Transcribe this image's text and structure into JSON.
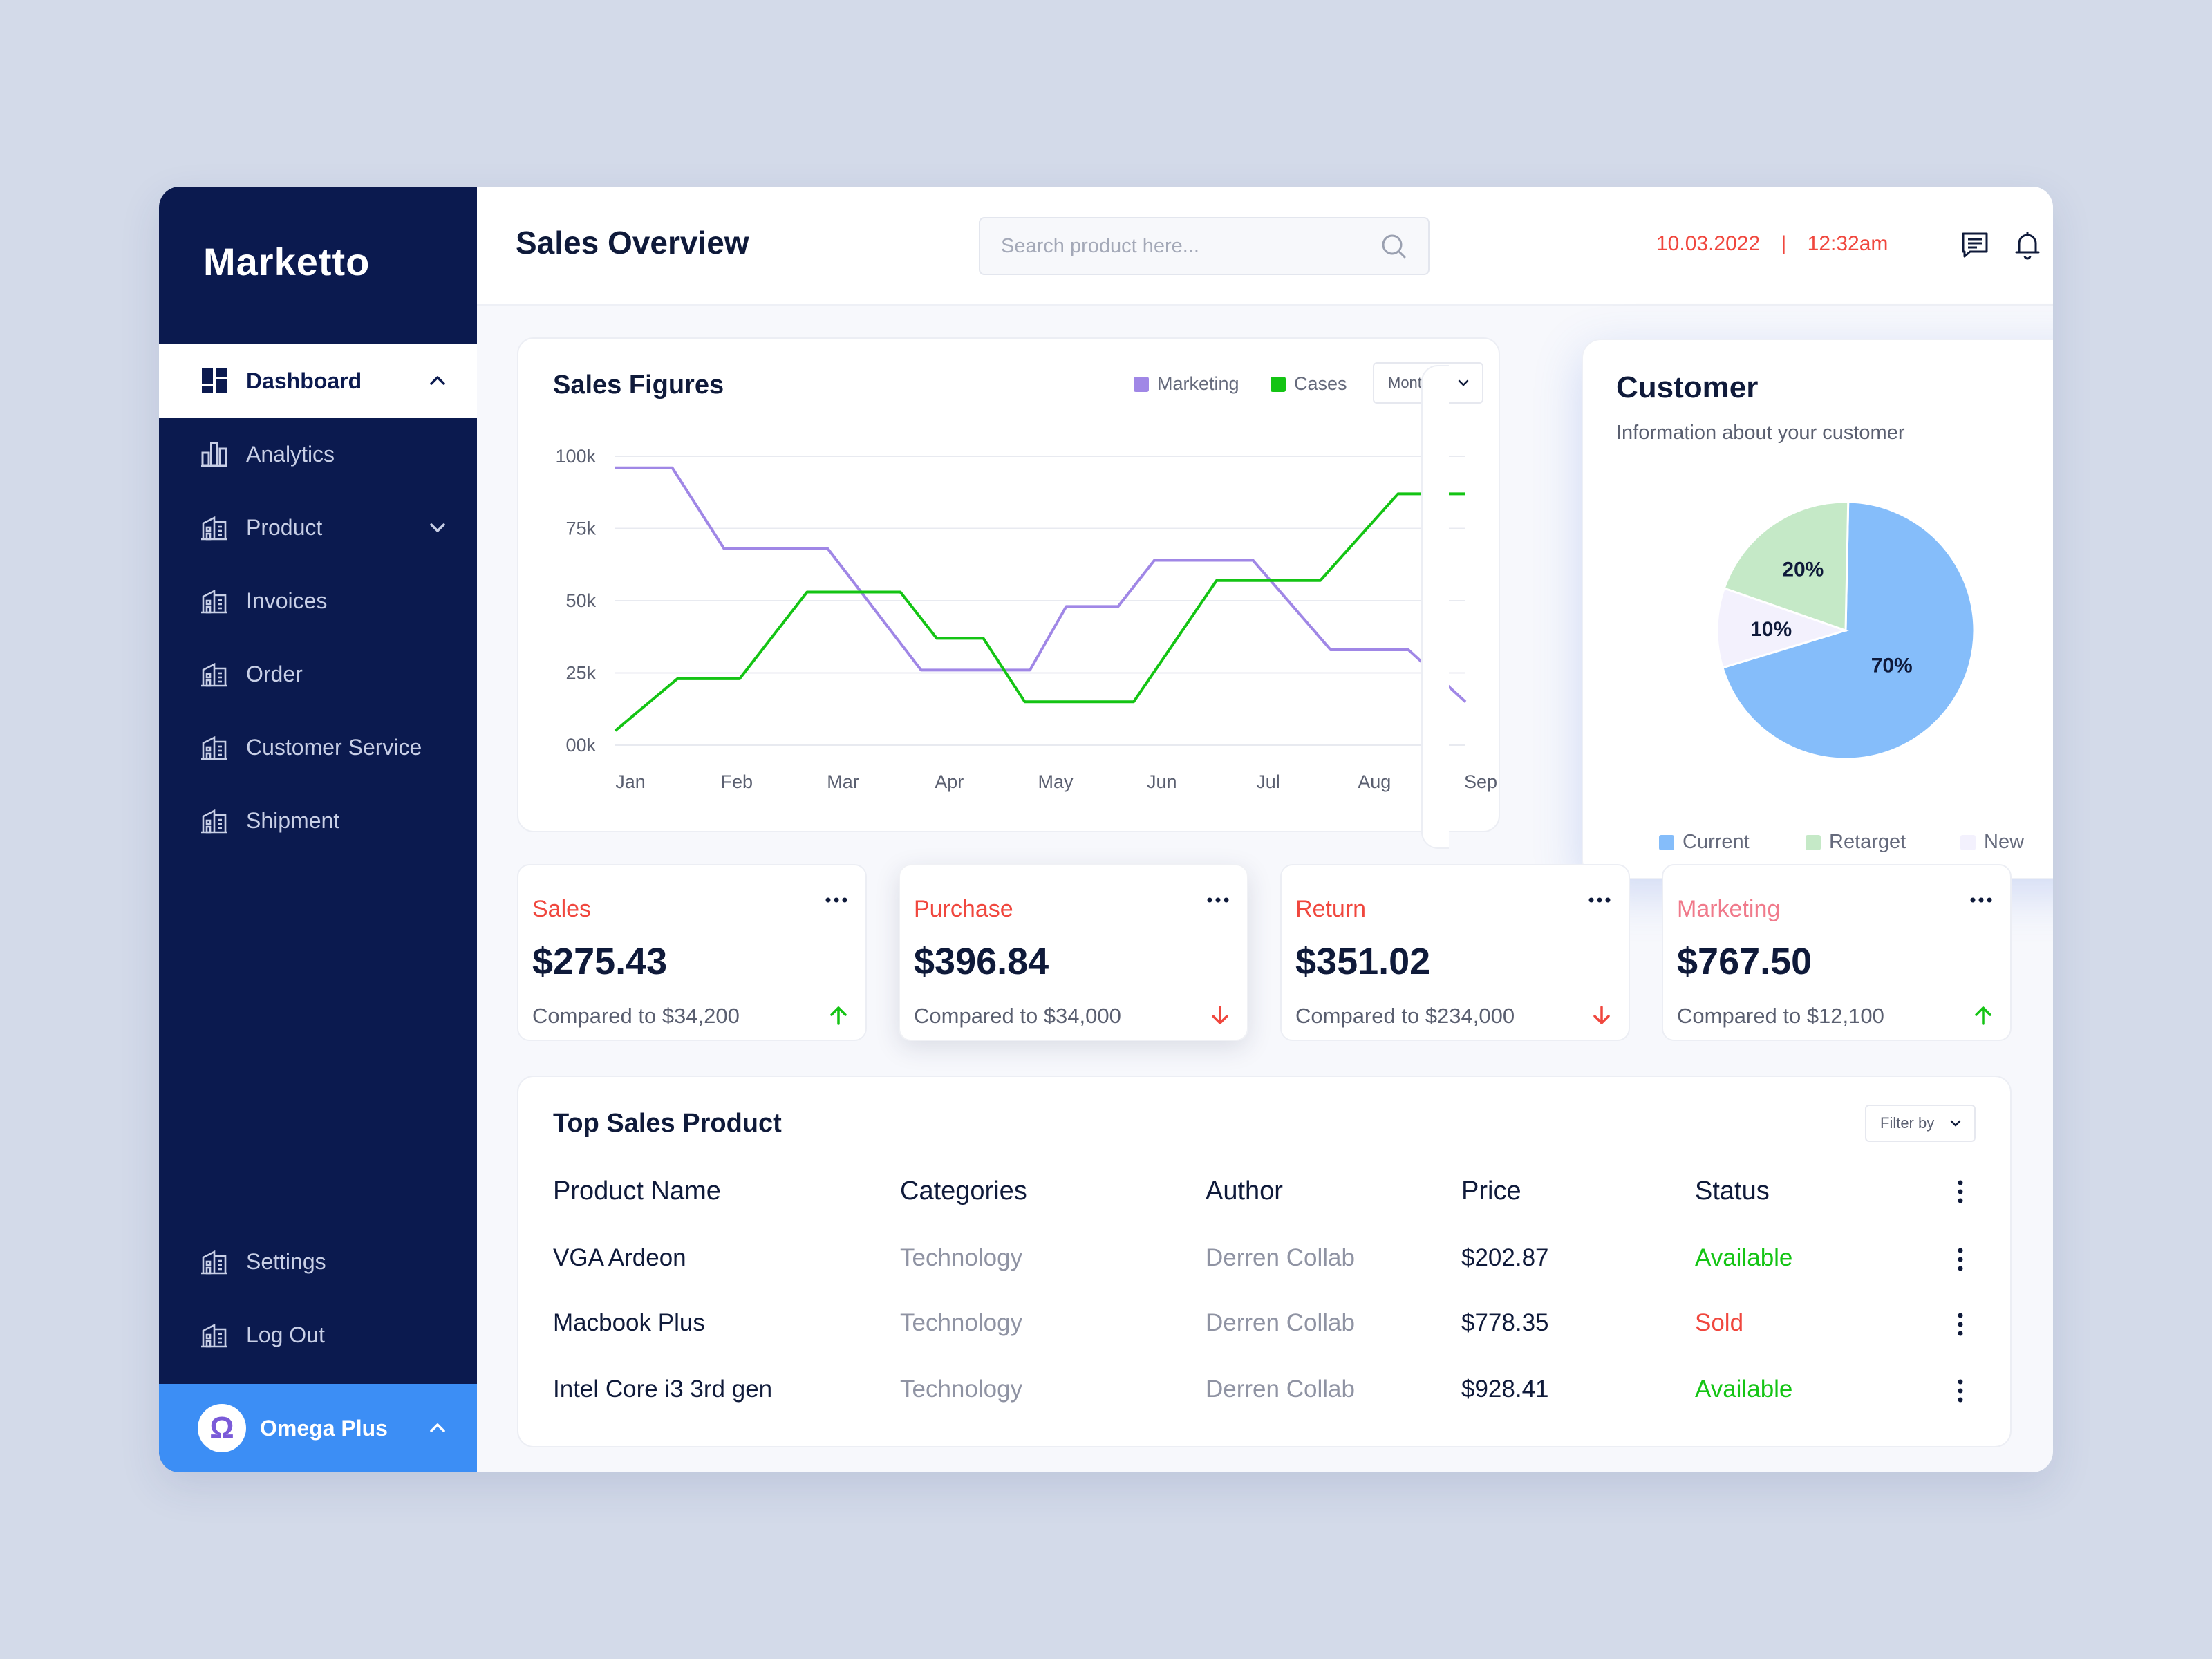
{
  "brand": "Marketto",
  "sidebar": {
    "items": [
      {
        "label": "Dashboard",
        "icon": "dashboard-icon",
        "active": true
      },
      {
        "label": "Analytics",
        "icon": "analytics-icon"
      },
      {
        "label": "Product",
        "icon": "building-icon"
      },
      {
        "label": "Invoices",
        "icon": "building-icon"
      },
      {
        "label": "Order",
        "icon": "building-icon"
      },
      {
        "label": "Customer Service",
        "icon": "building-icon"
      },
      {
        "label": "Shipment",
        "icon": "building-icon"
      }
    ],
    "bottom": [
      {
        "label": "Settings",
        "icon": "building-icon"
      },
      {
        "label": "Log Out",
        "icon": "building-icon"
      }
    ],
    "plan": {
      "label": "Omega Plus",
      "badge": "Ω"
    }
  },
  "header": {
    "title": "Sales Overview",
    "search_placeholder": "Search product here...",
    "date": "10.03.2022",
    "separator": "|",
    "time": "12:32am"
  },
  "sales_figures": {
    "title": "Sales Figures",
    "legend": [
      {
        "label": "Marketing",
        "color": "#a087e6"
      },
      {
        "label": "Cases",
        "color": "#14c414"
      }
    ],
    "period": "Monthly"
  },
  "chart_data": {
    "type": "line",
    "x": [
      "Jan",
      "Feb",
      "Mar",
      "Apr",
      "May",
      "Jun",
      "Jul",
      "Aug",
      "Sep"
    ],
    "y_ticks": [
      "00k",
      "25k",
      "50k",
      "75k",
      "100k"
    ],
    "ylim": [
      0,
      100
    ],
    "grid": true,
    "legend_position": "top-right",
    "series": [
      {
        "name": "Marketing",
        "color": "#a087e6",
        "points": [
          [
            0,
            96
          ],
          [
            0.55,
            96
          ],
          [
            1.05,
            68
          ],
          [
            2.05,
            68
          ],
          [
            2.95,
            26
          ],
          [
            4.0,
            26
          ],
          [
            4.35,
            48
          ],
          [
            4.85,
            48
          ],
          [
            5.2,
            64
          ],
          [
            6.15,
            64
          ],
          [
            6.9,
            33
          ],
          [
            7.65,
            33
          ],
          [
            8.2,
            15
          ]
        ]
      },
      {
        "name": "Cases",
        "color": "#14c414",
        "points": [
          [
            0,
            5
          ],
          [
            0.6,
            23
          ],
          [
            1.2,
            23
          ],
          [
            1.85,
            53
          ],
          [
            2.75,
            53
          ],
          [
            3.1,
            37
          ],
          [
            3.55,
            37
          ],
          [
            3.95,
            15
          ],
          [
            5.0,
            15
          ],
          [
            5.8,
            57
          ],
          [
            6.8,
            57
          ],
          [
            7.55,
            87
          ],
          [
            8.2,
            87
          ]
        ]
      }
    ]
  },
  "customer": {
    "title": "Customer",
    "subtitle": "Information about your customer",
    "legend": [
      {
        "label": "Current",
        "color": "#85bdfa"
      },
      {
        "label": "Retarget",
        "color": "#c5e9c7"
      },
      {
        "label": "New",
        "color": "#f3f1fd"
      }
    ],
    "pie": [
      {
        "label": "Current",
        "value": 70,
        "text": "70%",
        "color": "#85bdfa"
      },
      {
        "label": "New",
        "value": 10,
        "text": "10%",
        "color": "#f3f1fd"
      },
      {
        "label": "Retarget",
        "value": 20,
        "text": "20%",
        "color": "#c5e9c7"
      }
    ]
  },
  "stats": [
    {
      "label": "Sales",
      "label_color": "#f0473e",
      "value": "$275.43",
      "compare": "Compared to $34,200",
      "trend": "up"
    },
    {
      "label": "Purchase",
      "label_color": "#f0473e",
      "value": "$396.84",
      "compare": "Compared to $34,000",
      "trend": "down"
    },
    {
      "label": "Return",
      "label_color": "#f0473e",
      "value": "$351.02",
      "compare": "Compared to $234,000",
      "trend": "down"
    },
    {
      "label": "Marketing",
      "label_color": "#f07a8b",
      "value": "$767.50",
      "compare": "Compared to $12,100",
      "trend": "up"
    }
  ],
  "top_sales": {
    "title": "Top Sales Product",
    "filter": "Filter by",
    "columns": [
      "Product Name",
      "Categories",
      "Author",
      "Price",
      "Status"
    ],
    "rows": [
      {
        "name": "VGA Ardeon",
        "category": "Technology",
        "author": "Derren Collab",
        "price": "$202.87",
        "status": "Available",
        "status_color": "#14c414"
      },
      {
        "name": "Macbook Plus",
        "category": "Technology",
        "author": "Derren Collab",
        "price": "$778.35",
        "status": "Sold",
        "status_color": "#f0473e"
      },
      {
        "name": "Intel Core i3 3rd gen",
        "category": "Technology",
        "author": "Derren Collab",
        "price": "$928.41",
        "status": "Available",
        "status_color": "#14c414"
      }
    ]
  }
}
